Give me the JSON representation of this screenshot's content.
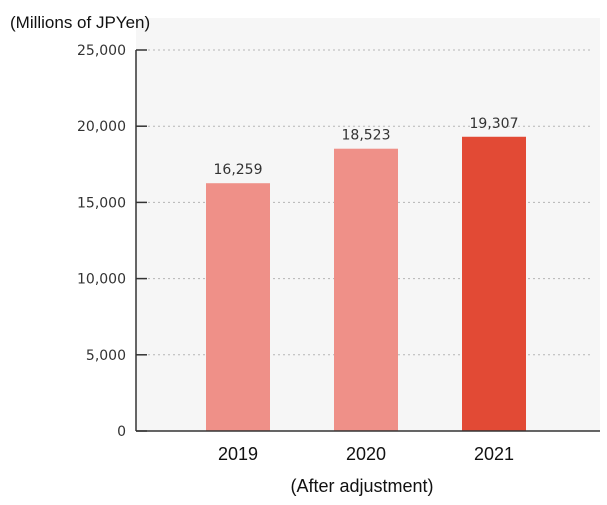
{
  "chart_data": {
    "type": "bar",
    "unit_label": "(Millions of JPYen)",
    "note": "(After adjustment)",
    "categories": [
      "2019",
      "2020",
      "2021"
    ],
    "values": [
      16259,
      18523,
      19307
    ],
    "value_labels": [
      "16,259",
      "18,523",
      "19,307"
    ],
    "bar_colors": [
      "#ef9088",
      "#ef9088",
      "#e24a35"
    ],
    "ylim": [
      0,
      25000
    ],
    "yticks": [
      0,
      5000,
      10000,
      15000,
      20000,
      25000
    ],
    "ytick_labels": [
      "0",
      "5,000",
      "10,000",
      "15,000",
      "20,000",
      "25,000"
    ],
    "grid": "dotted horizontal",
    "xlabel": "",
    "ylabel": ""
  }
}
